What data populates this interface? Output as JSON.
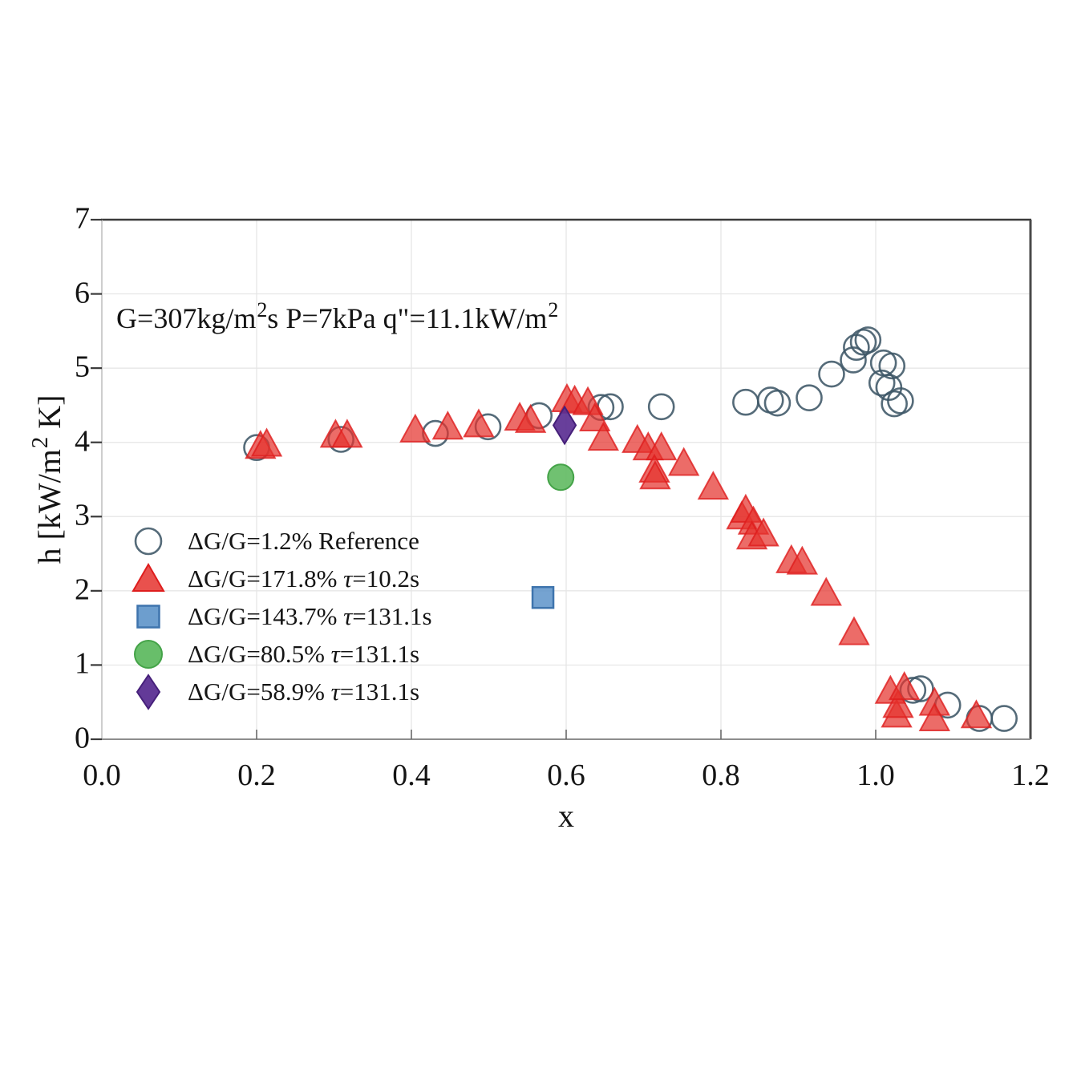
{
  "chart_data": {
    "type": "scatter",
    "annotation": "G=307kg/m²s P=7kPa q\"=11.1kW/m²",
    "xlabel": "x",
    "ylabel": "h [kW/m² K]",
    "xlim": [
      0,
      1.2
    ],
    "ylim": [
      0,
      7
    ],
    "xticks": [
      0,
      0.2,
      0.4,
      0.6,
      0.8,
      1.0,
      1.2
    ],
    "yticks": [
      0,
      1,
      2,
      3,
      4,
      5,
      6,
      7
    ],
    "grid": true,
    "legend_position": "lower-left-inside",
    "series": [
      {
        "name": "ΔG/G=1.2% Reference",
        "marker": "open-circle",
        "color": "#3d5766",
        "points": [
          [
            0.2,
            3.93
          ],
          [
            0.309,
            4.04
          ],
          [
            0.431,
            4.12
          ],
          [
            0.499,
            4.21
          ],
          [
            0.565,
            4.36
          ],
          [
            0.645,
            4.47
          ],
          [
            0.657,
            4.48
          ],
          [
            0.723,
            4.48
          ],
          [
            0.832,
            4.54
          ],
          [
            0.864,
            4.57
          ],
          [
            0.873,
            4.53
          ],
          [
            0.914,
            4.6
          ],
          [
            0.943,
            4.92
          ],
          [
            0.971,
            5.11
          ],
          [
            0.975,
            5.28
          ],
          [
            0.984,
            5.35
          ],
          [
            0.99,
            5.38
          ],
          [
            1.008,
            4.8
          ],
          [
            1.01,
            5.07
          ],
          [
            1.017,
            4.74
          ],
          [
            1.021,
            5.03
          ],
          [
            1.024,
            4.52
          ],
          [
            1.032,
            4.56
          ],
          [
            1.048,
            0.66
          ],
          [
            1.058,
            0.68
          ],
          [
            1.093,
            0.46
          ],
          [
            1.134,
            0.28
          ],
          [
            1.166,
            0.28
          ]
        ]
      },
      {
        "name": "ΔG/G=171.8% τ=10.2s",
        "marker": "triangle",
        "color": "#e5332e",
        "stroke": "#de1d1d",
        "points": [
          [
            0.205,
            3.94
          ],
          [
            0.213,
            3.97
          ],
          [
            0.302,
            4.09
          ],
          [
            0.317,
            4.09
          ],
          [
            0.405,
            4.16
          ],
          [
            0.447,
            4.2
          ],
          [
            0.487,
            4.23
          ],
          [
            0.54,
            4.32
          ],
          [
            0.554,
            4.29
          ],
          [
            0.601,
            4.57
          ],
          [
            0.611,
            4.55
          ],
          [
            0.628,
            4.53
          ],
          [
            0.637,
            4.31
          ],
          [
            0.648,
            4.05
          ],
          [
            0.692,
            4.02
          ],
          [
            0.706,
            3.92
          ],
          [
            0.723,
            3.92
          ],
          [
            0.714,
            3.62
          ],
          [
            0.715,
            3.53
          ],
          [
            0.752,
            3.71
          ],
          [
            0.79,
            3.39
          ],
          [
            0.827,
            2.99
          ],
          [
            0.832,
            3.08
          ],
          [
            0.842,
            2.92
          ],
          [
            0.84,
            2.72
          ],
          [
            0.855,
            2.76
          ],
          [
            0.891,
            2.4
          ],
          [
            0.905,
            2.38
          ],
          [
            0.936,
            1.96
          ],
          [
            0.972,
            1.43
          ],
          [
            1.019,
            0.64
          ],
          [
            1.027,
            0.32
          ],
          [
            1.029,
            0.45
          ],
          [
            1.037,
            0.69
          ],
          [
            1.076,
            0.48
          ],
          [
            1.076,
            0.27
          ],
          [
            1.13,
            0.31
          ]
        ]
      },
      {
        "name": "ΔG/G=143.7% τ=131.1s",
        "marker": "square",
        "color": "#5d93c9",
        "stroke": "#3e74ad",
        "points": [
          [
            0.57,
            1.91
          ]
        ]
      },
      {
        "name": "ΔG/G=80.5% τ=131.1s",
        "marker": "filled-circle",
        "color": "#60ba62",
        "stroke": "#44a348",
        "points": [
          [
            0.593,
            3.53
          ]
        ]
      },
      {
        "name": "ΔG/G=58.9% τ=131.1s",
        "marker": "diamond",
        "color": "#5b2f92",
        "stroke": "#46207a",
        "points": [
          [
            0.598,
            4.23
          ]
        ]
      }
    ]
  }
}
